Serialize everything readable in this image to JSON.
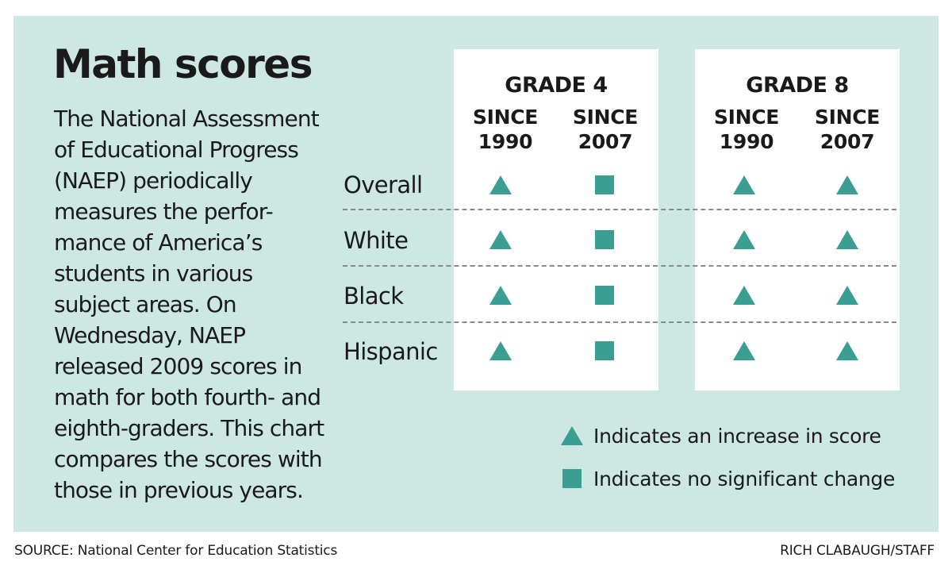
{
  "title": "Math scores",
  "intro_lines": [
    "The National Assessment",
    "of Educational Progress",
    "(NAEP) periodically",
    "measures the perfor-",
    "mance of America’s",
    "students in various",
    "subject areas. On",
    "Wednesday, NAEP",
    "released 2009 scores in",
    "math for both fourth- and",
    "eighth-graders. This chart",
    "compares the scores with",
    "those in previous years."
  ],
  "colors": {
    "background": "#cde7e2",
    "marker": "#3a9e93",
    "box": "#ffffff",
    "divider": "#8a8a8a"
  },
  "chart_data": {
    "type": "table",
    "grades": [
      {
        "label": "GRADE 4",
        "columns": [
          {
            "line1": "SINCE",
            "line2": "1990"
          },
          {
            "line1": "SINCE",
            "line2": "2007"
          }
        ]
      },
      {
        "label": "GRADE 8",
        "columns": [
          {
            "line1": "SINCE",
            "line2": "1990"
          },
          {
            "line1": "SINCE",
            "line2": "2007"
          }
        ]
      }
    ],
    "rows": [
      {
        "label": "Overall",
        "values": [
          "increase",
          "no change",
          "increase",
          "increase"
        ]
      },
      {
        "label": "White",
        "values": [
          "increase",
          "no change",
          "increase",
          "increase"
        ]
      },
      {
        "label": "Black",
        "values": [
          "increase",
          "no change",
          "increase",
          "increase"
        ]
      },
      {
        "label": "Hispanic",
        "values": [
          "increase",
          "no change",
          "increase",
          "increase"
        ]
      }
    ],
    "legend": [
      {
        "symbol": "triangle",
        "value": "increase",
        "text": "Indicates an increase in score"
      },
      {
        "symbol": "square",
        "value": "no change",
        "text": "Indicates no significant change"
      }
    ]
  },
  "source": "SOURCE: National Center for Education Statistics",
  "credit": "RICH CLABAUGH/STAFF"
}
